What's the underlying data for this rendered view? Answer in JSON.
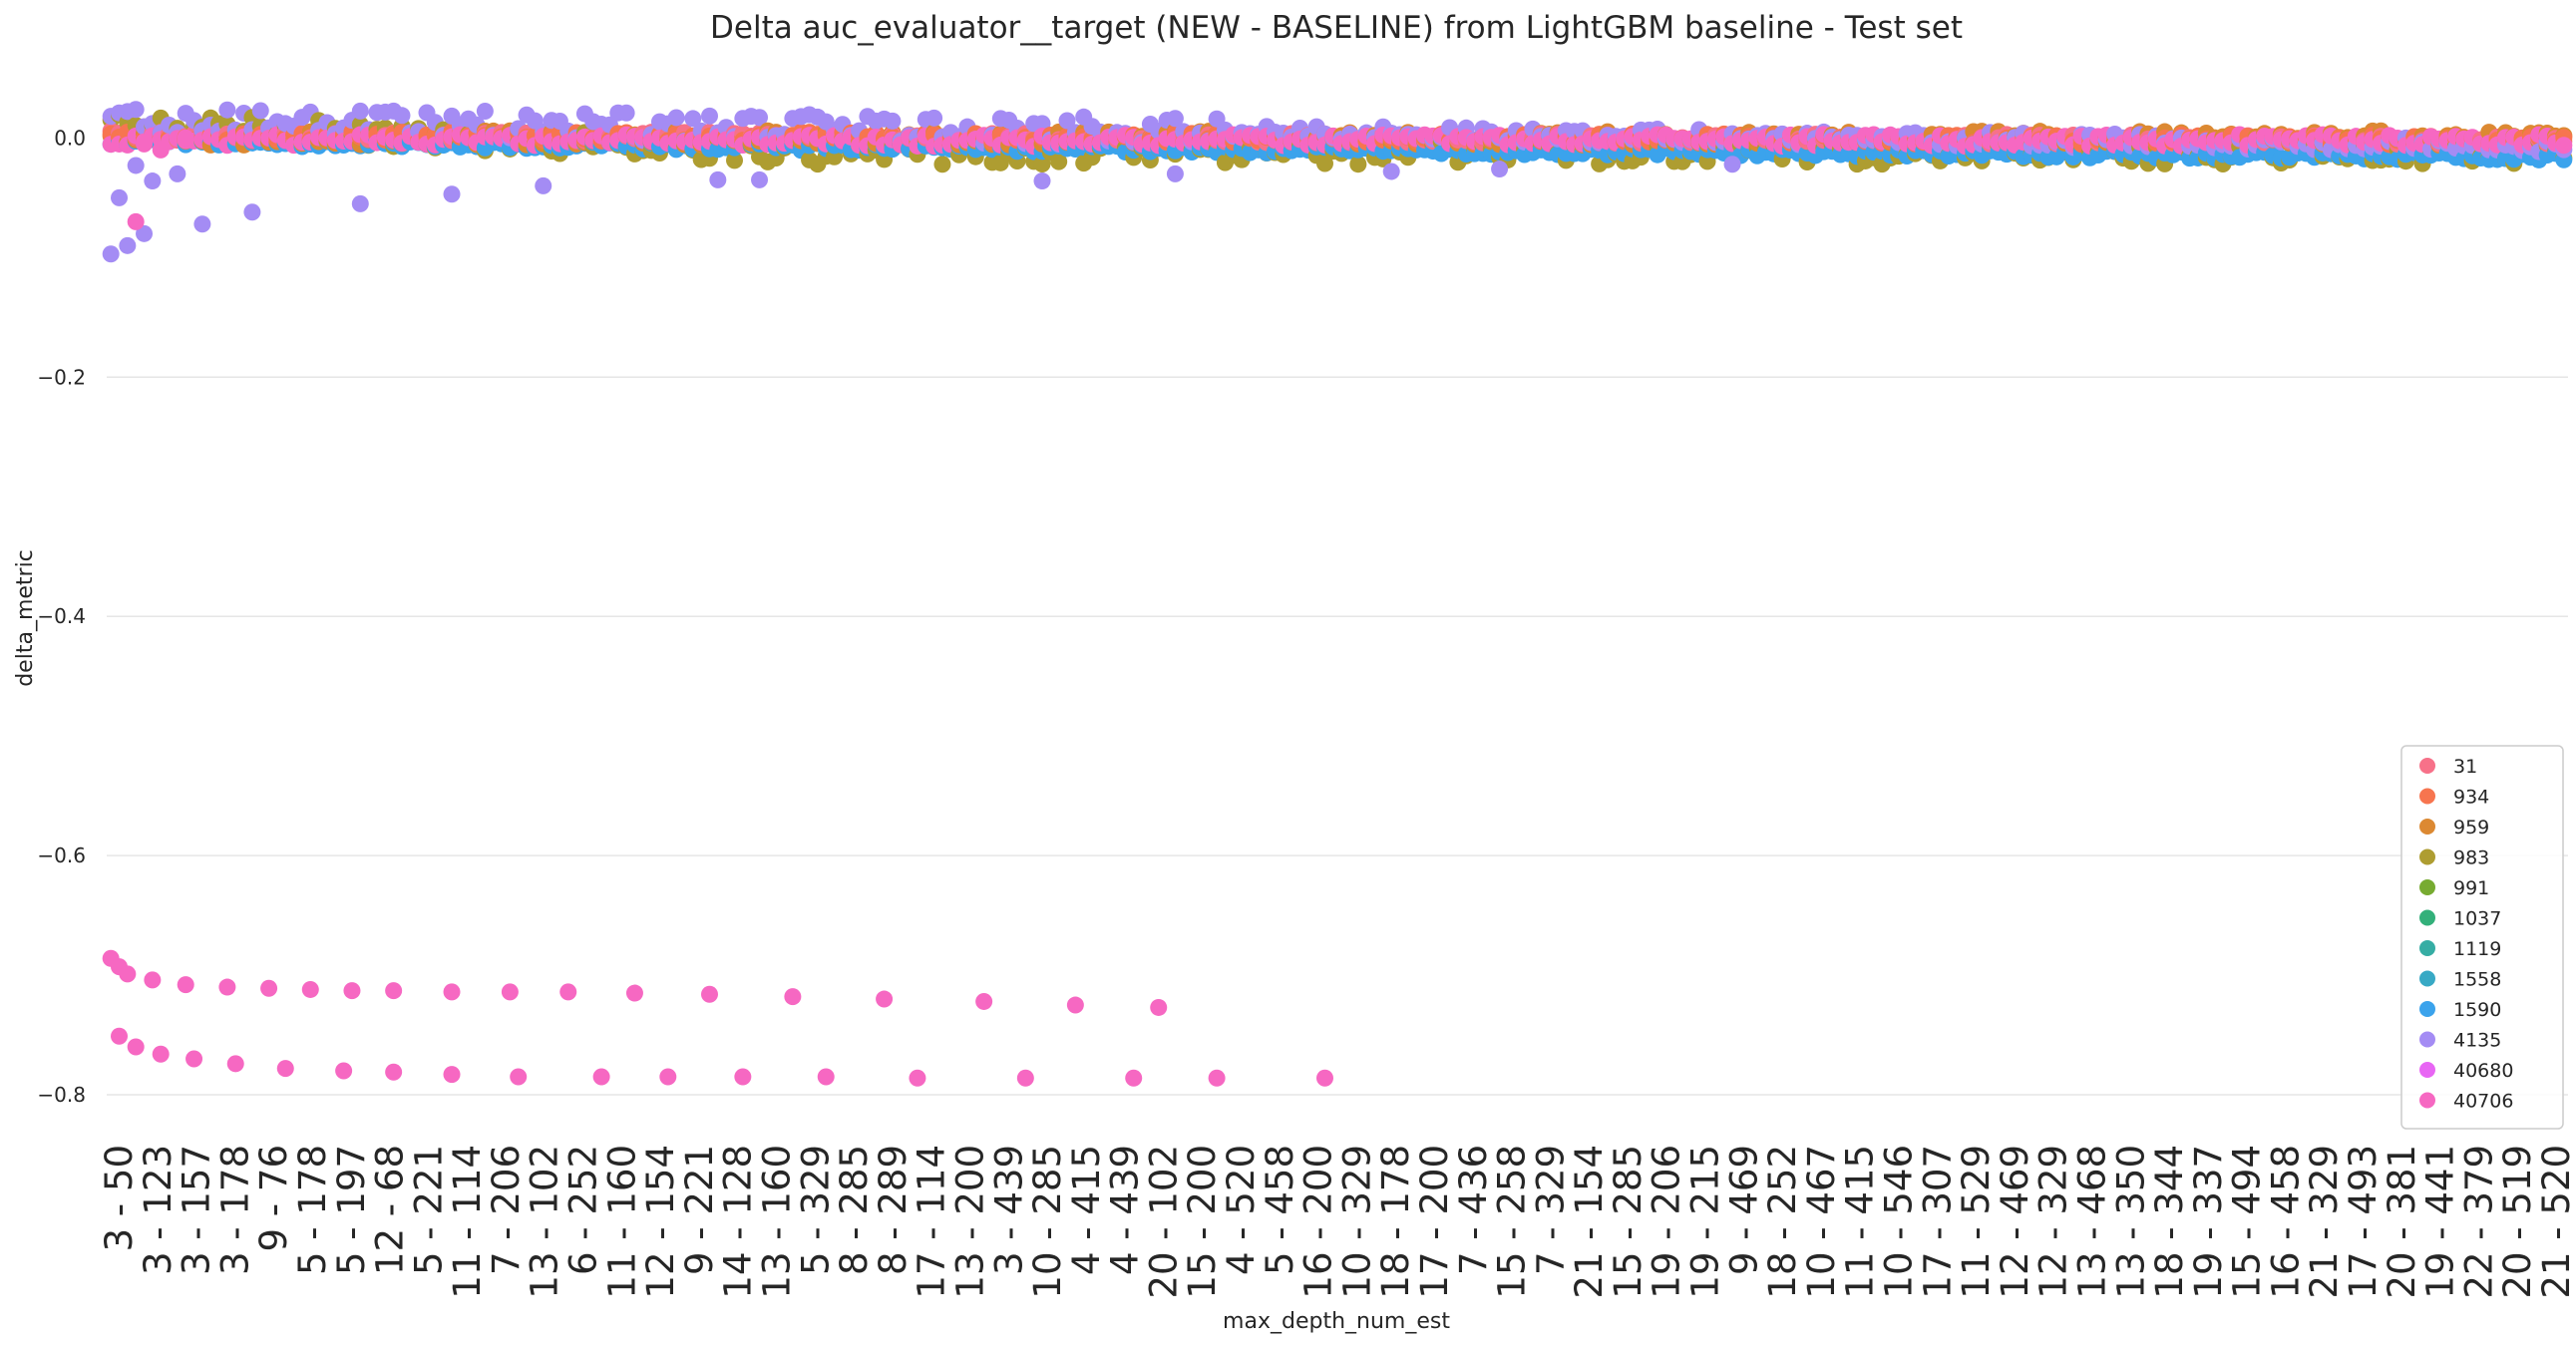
{
  "chart_data": {
    "type": "scatter",
    "title": "Delta auc_evaluator__target (NEW - BASELINE) from LightGBM baseline - Test set",
    "xlabel": "max_depth_num_est",
    "ylabel": "delta_metric",
    "ylim": [
      -0.835,
      0.072
    ],
    "yticks": [
      0.0,
      -0.2,
      -0.4,
      -0.6,
      -0.8
    ],
    "ytick_labels": [
      "0.0",
      "−0.2",
      "−0.4",
      "−0.6",
      "−0.8"
    ],
    "grid": "horizontal",
    "legend_position": "bottom-right",
    "x_tick_labels": [
      "3 - 50",
      "3 - 123",
      "3 - 157",
      "3 - 178",
      "9 - 76",
      "5 - 178",
      "5 - 197",
      "12 - 68",
      "5 - 221",
      "11 - 114",
      "7 - 206",
      "13 - 102",
      "6 - 252",
      "11 - 160",
      "12 - 154",
      "9 - 221",
      "14 - 128",
      "13 - 160",
      "5 - 329",
      "8 - 285",
      "8 - 289",
      "17 - 114",
      "13 - 200",
      "3 - 439",
      "10 - 285",
      "4 - 415",
      "4 - 439",
      "20 - 102",
      "15 - 200",
      "4 - 520",
      "5 - 458",
      "16 - 200",
      "10 - 329",
      "18 - 178",
      "17 - 200",
      "7 - 436",
      "15 - 258",
      "7 - 329",
      "21 - 154",
      "15 - 285",
      "19 - 206",
      "19 - 215",
      "9 - 469",
      "18 - 252",
      "10 - 467",
      "11 - 415",
      "10 - 546",
      "17 - 307",
      "11 - 529",
      "12 - 469",
      "12 - 329",
      "13 - 468",
      "13 - 350",
      "18 - 344",
      "19 - 337",
      "15 - 494",
      "16 - 458",
      "21 - 329",
      "17 - 493",
      "20 - 381",
      "19 - 441",
      "22 - 379",
      "20 - 519",
      "21 - 520"
    ],
    "num_categories": 296,
    "series": [
      {
        "name": "31",
        "color": "#f77189"
      },
      {
        "name": "934",
        "color": "#f7754f"
      },
      {
        "name": "959",
        "color": "#dc8932"
      },
      {
        "name": "983",
        "color": "#ae9d31"
      },
      {
        "name": "991",
        "color": "#77ab31"
      },
      {
        "name": "1037",
        "color": "#33b07a"
      },
      {
        "name": "1119",
        "color": "#36ada4"
      },
      {
        "name": "1558",
        "color": "#38a9c5"
      },
      {
        "name": "1590",
        "color": "#3ba3ec"
      },
      {
        "name": "4135",
        "color": "#a48cf4"
      },
      {
        "name": "40680",
        "color": "#e866f4"
      },
      {
        "name": "40706",
        "color": "#f668c2"
      }
    ],
    "outlier_series": {
      "name": "40706",
      "upper_branch": {
        "x_index": [
          0,
          1,
          2,
          5,
          9,
          14,
          19,
          24,
          29,
          34,
          41,
          48,
          55,
          63,
          72,
          82,
          93,
          105,
          116,
          126
        ],
        "values": [
          -0.686,
          -0.693,
          -0.699,
          -0.704,
          -0.708,
          -0.71,
          -0.711,
          -0.712,
          -0.713,
          -0.713,
          -0.714,
          -0.714,
          -0.714,
          -0.715,
          -0.716,
          -0.718,
          -0.72,
          -0.722,
          -0.725,
          -0.727
        ]
      },
      "lower_branch": {
        "x_index": [
          1,
          3,
          6,
          10,
          15,
          21,
          28,
          34,
          41,
          49,
          59,
          67,
          76,
          86,
          97,
          110,
          123,
          133,
          146
        ],
        "values": [
          -0.751,
          -0.76,
          -0.766,
          -0.77,
          -0.774,
          -0.778,
          -0.78,
          -0.781,
          -0.783,
          -0.785,
          -0.785,
          -0.785,
          -0.785,
          -0.785,
          -0.786,
          -0.786,
          -0.786,
          -0.786,
          -0.786
        ]
      }
    }
  }
}
